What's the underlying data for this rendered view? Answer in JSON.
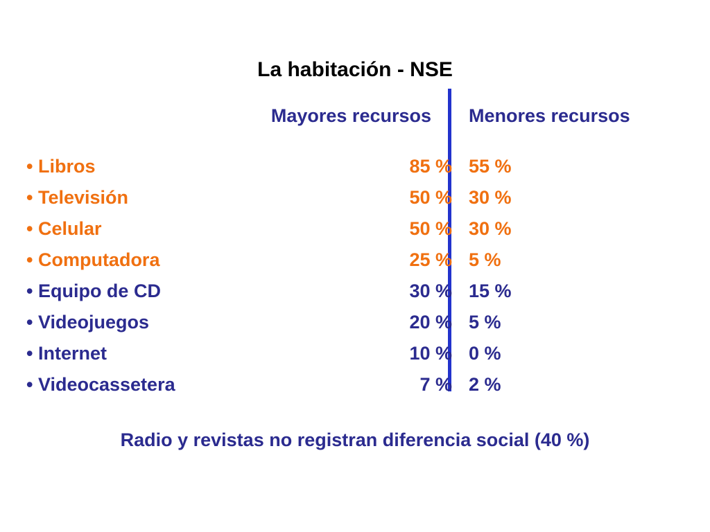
{
  "title": "La habitación - NSE",
  "columns": {
    "left": "Mayores recursos",
    "right": "Menores recursos"
  },
  "colors": {
    "title": "#000000",
    "headers": "#2b2b8f",
    "highlight": "#f07010",
    "normal": "#2b2b8f",
    "divider": "#2233cc"
  },
  "items": [
    {
      "label": "• Libros",
      "mayores": "85 %",
      "menores": "55 %",
      "highlight": true
    },
    {
      "label": "• Televisión",
      "mayores": "50 %",
      "menores": "30 %",
      "highlight": true
    },
    {
      "label": "• Celular",
      "mayores": "50 %",
      "menores": "30 %",
      "highlight": true
    },
    {
      "label": "• Computadora",
      "mayores": "25 %",
      "menores": "5 %",
      "highlight": true
    },
    {
      "label": "• Equipo de CD",
      "mayores": "30 %",
      "menores": "15 %",
      "highlight": false
    },
    {
      "label": "• Videojuegos",
      "mayores": "20 %",
      "menores": "5 %",
      "highlight": false
    },
    {
      "label": "• Internet",
      "mayores": "10 %",
      "menores": "0 %",
      "highlight": false
    },
    {
      "label": "• Videocassetera",
      "mayores": "7 %",
      "menores": "2 %",
      "highlight": false
    }
  ],
  "footer": "Radio y revistas no registran diferencia social (40 %)"
}
